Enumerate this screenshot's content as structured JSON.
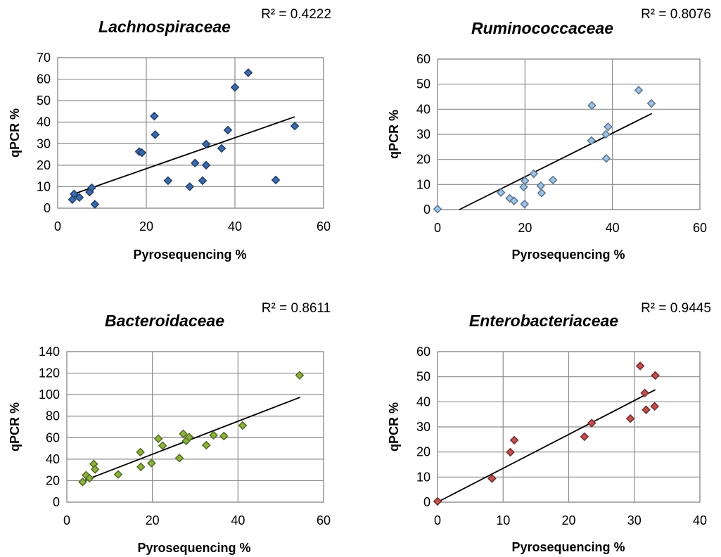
{
  "chart_data": [
    {
      "type": "scatter",
      "title": "Lachnospiraceae",
      "r_squared_label": "R² = 0.4222",
      "xlabel": "Pyrosequencing %",
      "ylabel": "qPCR %",
      "xlim": [
        0,
        60
      ],
      "ylim": [
        0,
        70
      ],
      "xticks": [
        0,
        20,
        40,
        60
      ],
      "yticks": [
        0,
        10,
        20,
        30,
        40,
        50,
        60,
        70
      ],
      "grid": "vertical and horizontal",
      "marker": "diamond",
      "color": "#3C6BAE",
      "trendline": {
        "x": [
          3.5,
          53.5
        ],
        "y": [
          6.5,
          42.5
        ]
      },
      "points": [
        {
          "x": 3.3,
          "y": 4.0
        },
        {
          "x": 3.7,
          "y": 6.6
        },
        {
          "x": 4.9,
          "y": 5.0
        },
        {
          "x": 7.2,
          "y": 7.5
        },
        {
          "x": 7.7,
          "y": 9.5
        },
        {
          "x": 8.4,
          "y": 1.8
        },
        {
          "x": 18.4,
          "y": 26.3
        },
        {
          "x": 19.0,
          "y": 25.8
        },
        {
          "x": 21.8,
          "y": 42.8
        },
        {
          "x": 22.0,
          "y": 34.2
        },
        {
          "x": 24.9,
          "y": 12.8
        },
        {
          "x": 29.8,
          "y": 10.0
        },
        {
          "x": 31.0,
          "y": 21.0
        },
        {
          "x": 32.7,
          "y": 12.8
        },
        {
          "x": 33.5,
          "y": 29.8
        },
        {
          "x": 33.5,
          "y": 20.0
        },
        {
          "x": 37.0,
          "y": 27.8
        },
        {
          "x": 38.4,
          "y": 36.3
        },
        {
          "x": 40.0,
          "y": 56.2
        },
        {
          "x": 43.0,
          "y": 63.0
        },
        {
          "x": 49.2,
          "y": 13.1
        },
        {
          "x": 53.5,
          "y": 38.2
        }
      ]
    },
    {
      "type": "scatter",
      "title": "Ruminococcaceae",
      "r_squared_label": "R² = 0.8076",
      "xlabel": "Pyrosequencing %",
      "ylabel": "qPCR %",
      "xlim": [
        0,
        60
      ],
      "ylim": [
        0,
        60
      ],
      "xticks": [
        0,
        20,
        40,
        60
      ],
      "yticks": [
        0,
        10,
        20,
        30,
        40,
        50,
        60
      ],
      "grid": "vertical and horizontal",
      "marker": "diamond",
      "color": "#9DC3E6",
      "trendline": {
        "x": [
          5.0,
          49.0
        ],
        "y": [
          0,
          38.3
        ]
      },
      "points": [
        {
          "x": 0.0,
          "y": 0.2
        },
        {
          "x": 14.5,
          "y": 6.8
        },
        {
          "x": 16.5,
          "y": 4.5
        },
        {
          "x": 17.5,
          "y": 3.5
        },
        {
          "x": 19.7,
          "y": 9.0
        },
        {
          "x": 19.9,
          "y": 2.2
        },
        {
          "x": 20.0,
          "y": 11.5
        },
        {
          "x": 22.0,
          "y": 14.3
        },
        {
          "x": 23.6,
          "y": 9.5
        },
        {
          "x": 23.8,
          "y": 6.6
        },
        {
          "x": 26.4,
          "y": 11.8
        },
        {
          "x": 35.2,
          "y": 27.5
        },
        {
          "x": 35.3,
          "y": 41.5
        },
        {
          "x": 38.5,
          "y": 30.0
        },
        {
          "x": 38.6,
          "y": 20.4
        },
        {
          "x": 39.0,
          "y": 33.0
        },
        {
          "x": 46.0,
          "y": 47.6
        },
        {
          "x": 48.9,
          "y": 42.3
        }
      ]
    },
    {
      "type": "scatter",
      "title": "Bacteroidaceae",
      "r_squared_label": "R² = 0.8611",
      "xlabel": "Pyrosequencing %",
      "ylabel": "qPCR %",
      "xlim": [
        0,
        60
      ],
      "ylim": [
        0,
        140
      ],
      "xticks": [
        0,
        20,
        40,
        60
      ],
      "yticks": [
        0,
        20,
        40,
        60,
        80,
        100,
        120,
        140
      ],
      "grid": "vertical and horizontal",
      "marker": "diamond",
      "color": "#8DB33F",
      "trendline": {
        "x": [
          4.0,
          54.5
        ],
        "y": [
          20.0,
          97.5
        ]
      },
      "points": [
        {
          "x": 3.7,
          "y": 18.8
        },
        {
          "x": 4.5,
          "y": 25.0
        },
        {
          "x": 5.3,
          "y": 22.3
        },
        {
          "x": 6.3,
          "y": 35.5
        },
        {
          "x": 6.6,
          "y": 30.5
        },
        {
          "x": 12.0,
          "y": 25.8
        },
        {
          "x": 17.2,
          "y": 46.5
        },
        {
          "x": 17.3,
          "y": 32.8
        },
        {
          "x": 19.8,
          "y": 36.3
        },
        {
          "x": 21.4,
          "y": 59.0
        },
        {
          "x": 22.4,
          "y": 52.5
        },
        {
          "x": 26.3,
          "y": 41.0
        },
        {
          "x": 27.2,
          "y": 63.5
        },
        {
          "x": 27.9,
          "y": 57.0
        },
        {
          "x": 28.6,
          "y": 60.5
        },
        {
          "x": 32.6,
          "y": 53.0
        },
        {
          "x": 34.3,
          "y": 62.3
        },
        {
          "x": 36.7,
          "y": 61.5
        },
        {
          "x": 41.1,
          "y": 71.3
        },
        {
          "x": 54.4,
          "y": 118.0
        }
      ]
    },
    {
      "type": "scatter",
      "title": "Enterobacteriaceae",
      "r_squared_label": "R² = 0.9445",
      "xlabel": "Pyrosequencing %",
      "ylabel": "qPCR %",
      "xlim": [
        0,
        40
      ],
      "ylim": [
        0,
        60
      ],
      "xticks": [
        0,
        10,
        20,
        30,
        40
      ],
      "yticks": [
        0,
        10,
        20,
        30,
        40,
        50,
        60
      ],
      "grid": "vertical and horizontal",
      "marker": "diamond",
      "color": "#C0504D",
      "trendline": {
        "x": [
          0.0,
          33.2
        ],
        "y": [
          0.0,
          44.8
        ]
      },
      "points": [
        {
          "x": 0.0,
          "y": 0.3
        },
        {
          "x": 8.3,
          "y": 9.4
        },
        {
          "x": 11.1,
          "y": 19.9
        },
        {
          "x": 11.7,
          "y": 24.7
        },
        {
          "x": 22.4,
          "y": 26.1
        },
        {
          "x": 23.5,
          "y": 31.5
        },
        {
          "x": 29.4,
          "y": 33.3
        },
        {
          "x": 30.9,
          "y": 54.3
        },
        {
          "x": 31.6,
          "y": 43.5
        },
        {
          "x": 31.8,
          "y": 36.8
        },
        {
          "x": 33.1,
          "y": 38.2
        },
        {
          "x": 33.2,
          "y": 50.5
        }
      ]
    }
  ]
}
